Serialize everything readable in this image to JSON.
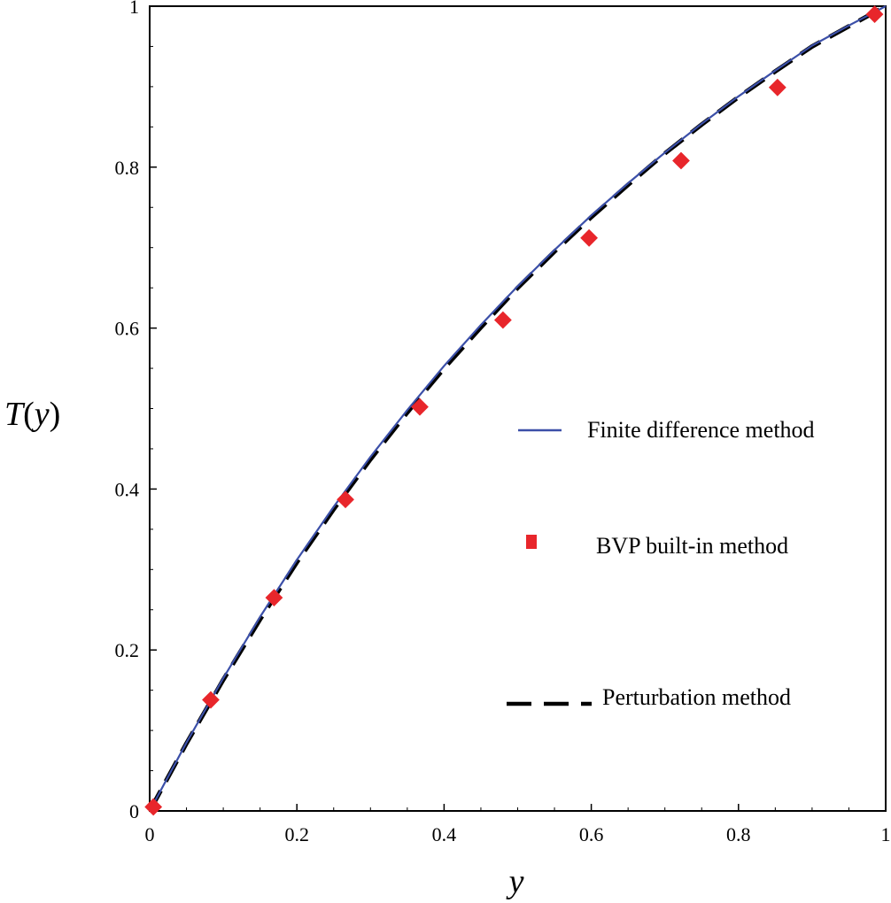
{
  "chart_data": {
    "type": "line",
    "title": "",
    "xlabel": "y",
    "ylabel": "T(y)",
    "ylabel_parts": {
      "symbol": "T",
      "open": "(",
      "var": "y",
      "close": ")"
    },
    "xlim": [
      0,
      1
    ],
    "ylim": [
      0,
      1
    ],
    "x_ticks": [
      0,
      0.2,
      0.4,
      0.6,
      0.8,
      1
    ],
    "y_ticks": [
      0,
      0.2,
      0.4,
      0.6,
      0.8,
      1
    ],
    "x_tick_labels": [
      "0",
      "0.2",
      "0.4",
      "0.6",
      "0.8",
      "1"
    ],
    "y_tick_labels": [
      "0",
      "0.2",
      "0.4",
      "0.6",
      "0.8",
      "1"
    ],
    "grid": false,
    "legend_position": "right",
    "series": [
      {
        "name": "Finite difference method",
        "style": "solid-line",
        "color": "#3b4fa8",
        "x": [
          0,
          0.05,
          0.1,
          0.15,
          0.2,
          0.25,
          0.3,
          0.35,
          0.4,
          0.45,
          0.5,
          0.55,
          0.6,
          0.65,
          0.7,
          0.75,
          0.8,
          0.85,
          0.9,
          0.95,
          1.0
        ],
        "values": [
          0,
          0.085,
          0.165,
          0.241,
          0.312,
          0.378,
          0.44,
          0.498,
          0.553,
          0.604,
          0.652,
          0.697,
          0.74,
          0.78,
          0.818,
          0.854,
          0.888,
          0.92,
          0.951,
          0.976,
          1.0
        ]
      },
      {
        "name": "BVP built-in method",
        "style": "square-markers",
        "color": "#e8262b",
        "x": [
          0.005,
          0.083,
          0.169,
          0.266,
          0.367,
          0.48,
          0.597,
          0.722,
          0.853,
          0.985
        ],
        "values": [
          0.005,
          0.138,
          0.265,
          0.387,
          0.502,
          0.61,
          0.712,
          0.808,
          0.899,
          0.99
        ]
      },
      {
        "name": "Perturbation method",
        "style": "dashed-line",
        "color": "#000000",
        "x": [
          0,
          0.05,
          0.1,
          0.15,
          0.2,
          0.25,
          0.3,
          0.35,
          0.4,
          0.45,
          0.5,
          0.55,
          0.6,
          0.65,
          0.7,
          0.75,
          0.8,
          0.85,
          0.9,
          0.95,
          1.0
        ],
        "values": [
          0,
          0.084,
          0.163,
          0.238,
          0.309,
          0.375,
          0.437,
          0.495,
          0.55,
          0.601,
          0.65,
          0.695,
          0.738,
          0.778,
          0.817,
          0.853,
          0.887,
          0.919,
          0.95,
          0.975,
          1.0
        ]
      }
    ]
  }
}
